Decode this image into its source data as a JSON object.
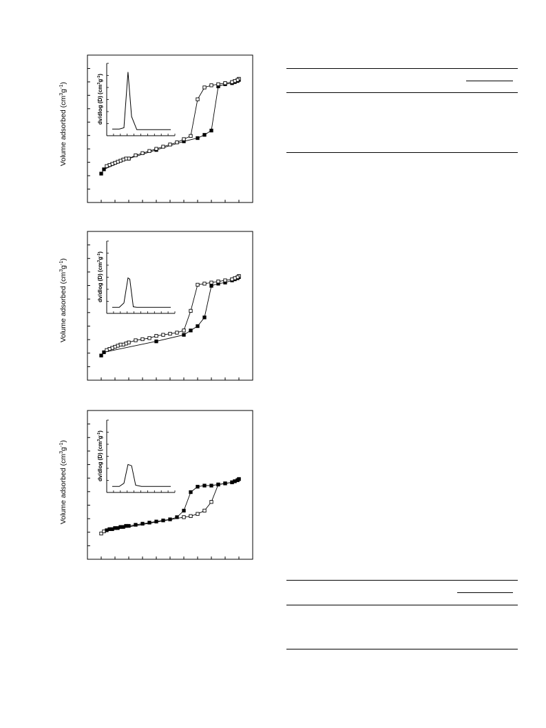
{
  "ylabel_text": "Volume adsorbed (cm",
  "inset_ylabel_text": "dv/dlog (D) (cm",
  "unit_sup1": "3",
  "unit_g": "g",
  "unit_sup2": "-1",
  "unit_close": ")",
  "chart_data": [
    {
      "type": "scatter",
      "ylabel": "Volume adsorbed (cm3g-1)",
      "xlim": [
        -0.1,
        1.1
      ],
      "ylim": [
        0,
        1
      ],
      "series": [
        {
          "marker": "filled-square",
          "color": "#000000",
          "x": [
            0.0,
            0.02,
            0.2,
            0.4,
            0.6,
            0.7,
            0.75,
            0.8,
            0.85,
            0.9,
            0.95,
            0.97,
            0.99,
            1.0
          ],
          "y": [
            0.14,
            0.18,
            0.28,
            0.36,
            0.44,
            0.47,
            0.5,
            0.54,
            0.95,
            0.97,
            0.98,
            0.99,
            1.0,
            1.01
          ]
        },
        {
          "marker": "open-square",
          "color": "#000000",
          "x": [
            1.0,
            0.99,
            0.97,
            0.95,
            0.9,
            0.85,
            0.8,
            0.75,
            0.7,
            0.65,
            0.6,
            0.55,
            0.5,
            0.45,
            0.4,
            0.35,
            0.3,
            0.25,
            0.2,
            0.18,
            0.16,
            0.14,
            0.12,
            0.1,
            0.08,
            0.06,
            0.04
          ],
          "y": [
            1.02,
            1.01,
            1.0,
            0.99,
            0.98,
            0.97,
            0.96,
            0.94,
            0.83,
            0.49,
            0.46,
            0.43,
            0.41,
            0.39,
            0.37,
            0.35,
            0.33,
            0.31,
            0.28,
            0.28,
            0.27,
            0.26,
            0.25,
            0.24,
            0.23,
            0.22,
            0.21
          ]
        }
      ],
      "inset": {
        "ylabel": "dv/dlog (D) (cm3g-1)",
        "x": [
          0,
          0.12,
          0.2,
          0.27,
          0.33,
          0.42,
          0.6,
          1.0
        ],
        "y": [
          0.04,
          0.04,
          0.06,
          0.95,
          0.24,
          0.03,
          0.03,
          0.03
        ]
      }
    },
    {
      "type": "scatter",
      "ylabel": "Volume adsorbed (cm3g-1)",
      "xlim": [
        -0.1,
        1.1
      ],
      "ylim": [
        0,
        1
      ],
      "series": [
        {
          "marker": "filled-square",
          "color": "#000000",
          "x": [
            0.0,
            0.02,
            0.4,
            0.6,
            0.65,
            0.7,
            0.75,
            0.8,
            0.85,
            0.9,
            0.95,
            0.97,
            0.99,
            1.0
          ],
          "y": [
            0.1,
            0.13,
            0.23,
            0.29,
            0.33,
            0.37,
            0.45,
            0.74,
            0.76,
            0.77,
            0.79,
            0.8,
            0.81,
            0.82
          ]
        },
        {
          "marker": "open-square",
          "color": "#000000",
          "x": [
            1.0,
            0.99,
            0.97,
            0.95,
            0.9,
            0.85,
            0.8,
            0.75,
            0.7,
            0.65,
            0.6,
            0.55,
            0.5,
            0.45,
            0.4,
            0.35,
            0.3,
            0.25,
            0.2,
            0.18,
            0.16,
            0.14,
            0.12,
            0.1,
            0.08,
            0.06,
            0.04
          ],
          "y": [
            0.83,
            0.82,
            0.81,
            0.8,
            0.79,
            0.78,
            0.77,
            0.76,
            0.75,
            0.51,
            0.33,
            0.31,
            0.3,
            0.29,
            0.28,
            0.26,
            0.25,
            0.24,
            0.22,
            0.21,
            0.2,
            0.2,
            0.19,
            0.18,
            0.17,
            0.16,
            0.15
          ]
        }
      ],
      "inset": {
        "ylabel": "dv/dlog (D) (cm3g-1)",
        "x": [
          0,
          0.12,
          0.2,
          0.27,
          0.3,
          0.36,
          0.42,
          0.6,
          1.0
        ],
        "y": [
          0.03,
          0.03,
          0.1,
          0.5,
          0.48,
          0.04,
          0.03,
          0.03,
          0.03
        ]
      }
    },
    {
      "type": "scatter",
      "ylabel": "Volume adsorbed (cm3g-1)",
      "xlim": [
        -0.1,
        1.1
      ],
      "ylim": [
        0,
        1
      ],
      "series": [
        {
          "marker": "open-square",
          "color": "#000000",
          "x": [
            0.0,
            0.02,
            0.6,
            0.65,
            0.7,
            0.75,
            0.8,
            0.85,
            0.9,
            0.95,
            0.97,
            0.99,
            1.0
          ],
          "y": [
            0.11,
            0.13,
            0.26,
            0.27,
            0.29,
            0.32,
            0.4,
            0.56,
            0.57,
            0.58,
            0.59,
            0.6,
            0.61
          ]
        },
        {
          "marker": "filled-square",
          "color": "#000000",
          "x": [
            1.0,
            0.99,
            0.97,
            0.95,
            0.9,
            0.85,
            0.8,
            0.75,
            0.7,
            0.65,
            0.6,
            0.55,
            0.5,
            0.45,
            0.4,
            0.35,
            0.3,
            0.25,
            0.2,
            0.18,
            0.16,
            0.14,
            0.12,
            0.1,
            0.08,
            0.06,
            0.04
          ],
          "y": [
            0.61,
            0.6,
            0.59,
            0.58,
            0.57,
            0.56,
            0.55,
            0.55,
            0.54,
            0.49,
            0.32,
            0.26,
            0.24,
            0.23,
            0.22,
            0.21,
            0.2,
            0.19,
            0.18,
            0.18,
            0.17,
            0.17,
            0.16,
            0.16,
            0.15,
            0.15,
            0.14
          ]
        }
      ],
      "inset": {
        "ylabel": "dv/dlog (D) (cm3g-1)",
        "x": [
          0,
          0.12,
          0.2,
          0.27,
          0.33,
          0.4,
          0.5,
          0.6,
          1.0
        ],
        "y": [
          0.03,
          0.03,
          0.08,
          0.38,
          0.36,
          0.05,
          0.03,
          0.03,
          0.03
        ]
      }
    }
  ],
  "tables": [
    {},
    {}
  ]
}
